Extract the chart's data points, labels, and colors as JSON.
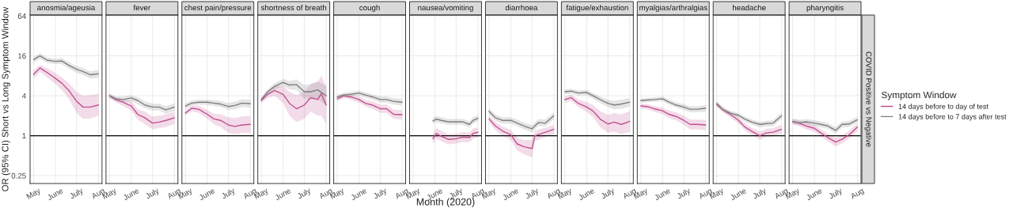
{
  "chart_data": [
    {
      "type": "line",
      "title": "anosmia/ageusia",
      "ylabel": "OR (95% CI) Short vs Long Symptom Window",
      "log": "y",
      "grid": true,
      "xlim": [
        "2020-04-26",
        "2020-08-06"
      ],
      "ylim": [
        0.19,
        66
      ],
      "yticks": [
        0.25,
        1,
        4,
        16,
        64
      ],
      "xticks": [
        {
          "value": "2020-05-01",
          "label": "May"
        },
        {
          "value": "2020-06-01",
          "label": "June"
        },
        {
          "value": "2020-07-01",
          "label": "July"
        },
        {
          "value": "2020-08-01",
          "label": "Aug"
        }
      ],
      "ref_lines": [
        {
          "axis": "y",
          "value": 1,
          "color": "#000000"
        }
      ],
      "x": [
        "2020-05-01",
        "2020-05-10",
        "2020-05-20",
        "2020-06-01",
        "2020-06-10",
        "2020-06-20",
        "2020-07-01",
        "2020-07-10",
        "2020-07-20",
        "2020-08-01"
      ],
      "series": [
        {
          "color": "#c2518f",
          "values": [
            8.4,
            10.5,
            9.0,
            7.3,
            6.2,
            4.8,
            3.3,
            2.7,
            2.7,
            2.9
          ],
          "lower": [
            7.2,
            9.2,
            7.6,
            6.0,
            4.9,
            3.6,
            2.2,
            1.8,
            1.8,
            2.0
          ],
          "upper": [
            9.6,
            11.8,
            10.4,
            8.8,
            7.6,
            6.2,
            4.6,
            4.0,
            4.1,
            4.3
          ]
        },
        {
          "color": "#7f7f7f",
          "values": [
            14,
            16,
            13.8,
            13.2,
            13.4,
            11.5,
            10,
            9.3,
            8.3,
            8.6
          ],
          "lower": [
            12.5,
            14.5,
            12.5,
            12,
            12,
            10.3,
            8.9,
            8.2,
            7.3,
            7.5
          ],
          "upper": [
            15.5,
            17.5,
            15.2,
            14.5,
            14.8,
            12.8,
            11.2,
            10.5,
            9.4,
            9.8
          ]
        }
      ]
    },
    {
      "type": "line",
      "title": "fever",
      "log": "y",
      "grid": true,
      "tick_labels": "x",
      "xlim": [
        "2020-04-26",
        "2020-08-06"
      ],
      "ylim": [
        0.19,
        66
      ],
      "yticks": [
        0.25,
        1,
        4,
        16,
        64
      ],
      "xticks": [
        {
          "value": "2020-05-01",
          "label": "May"
        },
        {
          "value": "2020-06-01",
          "label": "June"
        },
        {
          "value": "2020-07-01",
          "label": "July"
        },
        {
          "value": "2020-08-01",
          "label": "Aug"
        }
      ],
      "ref_lines": [
        {
          "axis": "y",
          "value": 1,
          "color": "#000000"
        }
      ],
      "x": [
        "2020-05-01",
        "2020-05-10",
        "2020-05-20",
        "2020-06-01",
        "2020-06-10",
        "2020-06-20",
        "2020-07-01",
        "2020-07-10",
        "2020-07-20",
        "2020-08-01"
      ],
      "series": [
        {
          "color": "#c2518f",
          "values": [
            4.0,
            3.5,
            3.2,
            2.8,
            2.1,
            1.86,
            1.55,
            1.6,
            1.7,
            1.86
          ],
          "lower": [
            3.7,
            3.2,
            2.8,
            2.4,
            1.75,
            1.5,
            1.25,
            1.3,
            1.35,
            1.5
          ],
          "upper": [
            4.3,
            3.8,
            3.6,
            3.3,
            2.5,
            2.3,
            1.95,
            2.0,
            2.1,
            2.3
          ]
        },
        {
          "color": "#7f7f7f",
          "values": [
            4.0,
            3.6,
            3.5,
            3.7,
            3.4,
            2.9,
            2.7,
            2.7,
            2.45,
            2.7
          ],
          "lower": [
            3.7,
            3.3,
            3.2,
            3.3,
            3.0,
            2.6,
            2.4,
            2.4,
            2.15,
            2.35
          ],
          "upper": [
            4.3,
            3.9,
            3.9,
            4.1,
            3.8,
            3.3,
            3.05,
            3.05,
            2.8,
            3.1
          ]
        }
      ]
    },
    {
      "type": "line",
      "title": "chest pain/pressure",
      "log": "y",
      "grid": true,
      "tick_labels": "x",
      "xlim": [
        "2020-04-26",
        "2020-08-06"
      ],
      "ylim": [
        0.19,
        66
      ],
      "yticks": [
        0.25,
        1,
        4,
        16,
        64
      ],
      "xticks": [
        {
          "value": "2020-05-01",
          "label": "May"
        },
        {
          "value": "2020-06-01",
          "label": "June"
        },
        {
          "value": "2020-07-01",
          "label": "July"
        },
        {
          "value": "2020-08-01",
          "label": "Aug"
        }
      ],
      "ref_lines": [
        {
          "axis": "y",
          "value": 1,
          "color": "#000000"
        }
      ],
      "x": [
        "2020-05-01",
        "2020-05-10",
        "2020-05-20",
        "2020-06-01",
        "2020-06-10",
        "2020-06-20",
        "2020-07-01",
        "2020-07-10",
        "2020-07-20",
        "2020-08-01"
      ],
      "series": [
        {
          "color": "#c2518f",
          "values": [
            2.2,
            2.6,
            2.5,
            2.1,
            1.8,
            1.7,
            1.45,
            1.38,
            1.45,
            1.48
          ],
          "lower": [
            2.0,
            2.35,
            2.2,
            1.8,
            1.5,
            1.35,
            1.1,
            1.05,
            1.1,
            1.1
          ],
          "upper": [
            2.45,
            2.85,
            2.85,
            2.45,
            2.15,
            2.1,
            1.9,
            1.85,
            1.95,
            2.0
          ]
        },
        {
          "color": "#7f7f7f",
          "values": [
            2.8,
            3.1,
            3.2,
            3.2,
            3.1,
            3.0,
            2.75,
            2.85,
            3.1,
            3.05
          ],
          "lower": [
            2.55,
            2.85,
            2.95,
            2.9,
            2.8,
            2.7,
            2.45,
            2.5,
            2.7,
            2.65
          ],
          "upper": [
            3.1,
            3.4,
            3.5,
            3.5,
            3.45,
            3.35,
            3.1,
            3.25,
            3.55,
            3.5
          ]
        }
      ]
    },
    {
      "type": "line",
      "title": "shortness of breath",
      "log": "y",
      "grid": true,
      "tick_labels": "x",
      "xlim": [
        "2020-04-26",
        "2020-08-06"
      ],
      "ylim": [
        0.19,
        66
      ],
      "yticks": [
        0.25,
        1,
        4,
        16,
        64
      ],
      "xticks": [
        {
          "value": "2020-05-01",
          "label": "May"
        },
        {
          "value": "2020-06-01",
          "label": "June"
        },
        {
          "value": "2020-07-01",
          "label": "July"
        },
        {
          "value": "2020-08-01",
          "label": "Aug"
        }
      ],
      "ref_lines": [
        {
          "axis": "y",
          "value": 1,
          "color": "#000000"
        }
      ],
      "x": [
        "2020-05-01",
        "2020-05-10",
        "2020-05-20",
        "2020-06-01",
        "2020-06-10",
        "2020-06-20",
        "2020-07-01",
        "2020-07-10",
        "2020-07-20",
        "2020-08-01"
      ],
      "series": [
        {
          "color": "#c2518f",
          "x": [
            "2020-05-01",
            "2020-05-10",
            "2020-05-20",
            "2020-06-01",
            "2020-06-10",
            "2020-06-20",
            "2020-07-01",
            "2020-07-10",
            "2020-07-20",
            "2020-07-25",
            "2020-08-01"
          ],
          "values": [
            3.4,
            4.2,
            4.8,
            4.2,
            3.07,
            2.55,
            2.9,
            3.75,
            3.5,
            4.3,
            2.9
          ],
          "lower": [
            3.1,
            3.7,
            4.0,
            3.1,
            2.0,
            1.6,
            1.8,
            2.3,
            2.0,
            2.0,
            1.5
          ],
          "upper": [
            3.7,
            4.7,
            5.6,
            5.6,
            4.6,
            4.1,
            4.6,
            6.0,
            6.5,
            8.0,
            5.5
          ]
        },
        {
          "color": "#7f7f7f",
          "values": [
            3.5,
            4.6,
            5.55,
            6.35,
            5.8,
            5.9,
            4.6,
            4.6,
            4.9,
            4.0
          ],
          "lower": [
            3.2,
            4.2,
            5.0,
            5.6,
            5.0,
            4.9,
            3.6,
            3.5,
            3.6,
            2.8
          ],
          "upper": [
            3.8,
            5.0,
            6.2,
            7.2,
            6.7,
            7.1,
            5.8,
            6.0,
            6.6,
            5.6
          ]
        }
      ]
    },
    {
      "type": "line",
      "title": "cough",
      "log": "y",
      "grid": true,
      "tick_labels": "x",
      "xlim": [
        "2020-04-26",
        "2020-08-06"
      ],
      "ylim": [
        0.19,
        66
      ],
      "yticks": [
        0.25,
        1,
        4,
        16,
        64
      ],
      "xticks": [
        {
          "value": "2020-05-01",
          "label": "May"
        },
        {
          "value": "2020-06-01",
          "label": "June"
        },
        {
          "value": "2020-07-01",
          "label": "July"
        },
        {
          "value": "2020-08-01",
          "label": "Aug"
        }
      ],
      "ref_lines": [
        {
          "axis": "y",
          "value": 1,
          "color": "#000000"
        }
      ],
      "x": [
        "2020-05-01",
        "2020-05-10",
        "2020-05-20",
        "2020-06-01",
        "2020-06-10",
        "2020-06-20",
        "2020-07-01",
        "2020-07-10",
        "2020-07-20",
        "2020-08-01"
      ],
      "series": [
        {
          "color": "#c2518f",
          "values": [
            3.6,
            4.0,
            3.85,
            3.5,
            3.07,
            2.9,
            2.55,
            2.55,
            2.1,
            2.07
          ],
          "lower": [
            3.3,
            3.7,
            3.5,
            3.15,
            2.75,
            2.55,
            2.2,
            2.2,
            1.8,
            1.75
          ],
          "upper": [
            3.9,
            4.3,
            4.2,
            3.9,
            3.45,
            3.3,
            2.95,
            2.95,
            2.45,
            2.45
          ]
        },
        {
          "color": "#7f7f7f",
          "values": [
            3.85,
            4.1,
            4.2,
            4.4,
            4.1,
            3.85,
            3.5,
            3.5,
            3.3,
            3.2
          ],
          "lower": [
            3.55,
            3.8,
            3.9,
            4.0,
            3.75,
            3.5,
            3.15,
            3.15,
            2.95,
            2.85
          ],
          "upper": [
            4.15,
            4.4,
            4.55,
            4.8,
            4.5,
            4.2,
            3.9,
            3.9,
            3.7,
            3.6
          ]
        }
      ]
    },
    {
      "type": "line",
      "title": "nausea/vomiting",
      "xlabel": "Month (2020)",
      "log": "y",
      "grid": true,
      "tick_labels": "x",
      "xlim": [
        "2020-04-26",
        "2020-08-06"
      ],
      "ylim": [
        0.19,
        66
      ],
      "yticks": [
        0.25,
        1,
        4,
        16,
        64
      ],
      "xticks": [
        {
          "value": "2020-05-01",
          "label": "May"
        },
        {
          "value": "2020-06-01",
          "label": "June"
        },
        {
          "value": "2020-07-01",
          "label": "July"
        },
        {
          "value": "2020-08-01",
          "label": "Aug"
        }
      ],
      "ref_lines": [
        {
          "axis": "y",
          "value": 1,
          "color": "#000000"
        }
      ],
      "x": [
        "2020-05-29",
        "2020-06-03",
        "2020-06-10",
        "2020-06-20",
        "2020-07-01",
        "2020-07-10",
        "2020-07-20",
        "2020-07-25",
        "2020-08-01"
      ],
      "series": [
        {
          "color": "#c2518f",
          "values": [
            0.9,
            1.08,
            0.98,
            0.88,
            0.9,
            0.95,
            0.94,
            1.08,
            1.13
          ],
          "lower": [
            0.75,
            0.9,
            0.82,
            0.74,
            0.76,
            0.8,
            0.8,
            0.9,
            0.95
          ],
          "upper": [
            1.08,
            1.3,
            1.18,
            1.05,
            1.07,
            1.13,
            1.12,
            1.28,
            1.34
          ]
        },
        {
          "color": "#7f7f7f",
          "values": [
            1.67,
            1.78,
            1.7,
            1.62,
            1.62,
            1.62,
            1.48,
            1.7,
            1.83
          ],
          "lower": [
            1.5,
            1.6,
            1.53,
            1.46,
            1.46,
            1.46,
            1.33,
            1.52,
            1.64
          ],
          "upper": [
            1.86,
            1.98,
            1.89,
            1.8,
            1.8,
            1.8,
            1.65,
            1.9,
            2.04
          ]
        }
      ]
    },
    {
      "type": "line",
      "title": "diarrhoea",
      "log": "y",
      "grid": true,
      "tick_labels": "x",
      "xlim": [
        "2020-04-26",
        "2020-08-06"
      ],
      "ylim": [
        0.19,
        66
      ],
      "yticks": [
        0.25,
        1,
        4,
        16,
        64
      ],
      "xticks": [
        {
          "value": "2020-05-01",
          "label": "May"
        },
        {
          "value": "2020-06-01",
          "label": "June"
        },
        {
          "value": "2020-07-01",
          "label": "July"
        },
        {
          "value": "2020-08-01",
          "label": "Aug"
        }
      ],
      "ref_lines": [
        {
          "axis": "y",
          "value": 1,
          "color": "#000000"
        }
      ],
      "x": [
        "2020-05-01",
        "2020-05-10",
        "2020-05-20",
        "2020-06-01",
        "2020-06-10",
        "2020-06-20",
        "2020-07-01",
        "2020-07-10",
        "2020-07-20",
        "2020-08-01"
      ],
      "series": [
        {
          "color": "#c2518f",
          "x": [
            "2020-05-01",
            "2020-05-10",
            "2020-05-20",
            "2020-06-01",
            "2020-06-10",
            "2020-06-20",
            "2020-07-01",
            "2020-07-05",
            "2020-07-20",
            "2020-08-01"
          ],
          "values": [
            1.8,
            1.4,
            1.18,
            1.03,
            0.75,
            0.68,
            0.64,
            1.0,
            1.13,
            1.25
          ],
          "lower": [
            1.6,
            1.22,
            1.0,
            0.86,
            0.6,
            0.52,
            0.47,
            0.82,
            0.96,
            1.06
          ],
          "upper": [
            2.0,
            1.6,
            1.38,
            1.22,
            0.93,
            0.86,
            0.86,
            1.2,
            1.32,
            1.46
          ]
        },
        {
          "color": "#7f7f7f",
          "values": [
            2.33,
            1.86,
            1.7,
            1.7,
            1.55,
            1.4,
            1.27,
            1.58,
            1.55,
            2.0
          ],
          "lower": [
            2.1,
            1.66,
            1.52,
            1.52,
            1.38,
            1.24,
            1.12,
            1.4,
            1.38,
            1.77
          ],
          "upper": [
            2.58,
            2.08,
            1.9,
            1.9,
            1.74,
            1.58,
            1.44,
            1.78,
            1.75,
            2.26
          ]
        }
      ]
    },
    {
      "type": "line",
      "title": "fatigue/exhaustion",
      "log": "y",
      "grid": true,
      "tick_labels": "x",
      "xlim": [
        "2020-04-26",
        "2020-08-06"
      ],
      "ylim": [
        0.19,
        66
      ],
      "yticks": [
        0.25,
        1,
        4,
        16,
        64
      ],
      "xticks": [
        {
          "value": "2020-05-01",
          "label": "May"
        },
        {
          "value": "2020-06-01",
          "label": "June"
        },
        {
          "value": "2020-07-01",
          "label": "July"
        },
        {
          "value": "2020-08-01",
          "label": "Aug"
        }
      ],
      "ref_lines": [
        {
          "axis": "y",
          "value": 1,
          "color": "#000000"
        }
      ],
      "x": [
        "2020-05-01",
        "2020-05-10",
        "2020-05-20",
        "2020-06-01",
        "2020-06-10",
        "2020-06-20",
        "2020-07-01",
        "2020-07-10",
        "2020-07-20",
        "2020-08-01"
      ],
      "series": [
        {
          "color": "#c2518f",
          "values": [
            3.5,
            3.75,
            3.07,
            2.7,
            2.35,
            1.78,
            1.5,
            1.6,
            1.48,
            1.65
          ],
          "lower": [
            3.1,
            3.35,
            2.7,
            2.3,
            1.9,
            1.35,
            1.1,
            1.15,
            1.05,
            1.15
          ],
          "upper": [
            3.9,
            4.2,
            3.5,
            3.2,
            2.9,
            2.35,
            2.05,
            2.2,
            2.1,
            2.35
          ]
        },
        {
          "color": "#7f7f7f",
          "values": [
            4.6,
            4.7,
            4.4,
            4.5,
            4.0,
            3.5,
            3.07,
            2.9,
            3.0,
            3.2
          ],
          "lower": [
            4.2,
            4.3,
            4.0,
            4.1,
            3.6,
            3.1,
            2.7,
            2.5,
            2.55,
            2.75
          ],
          "upper": [
            5.0,
            5.1,
            4.8,
            4.9,
            4.4,
            3.9,
            3.5,
            3.35,
            3.5,
            3.7
          ]
        }
      ]
    },
    {
      "type": "line",
      "title": "myalgias/arthralgias",
      "log": "y",
      "grid": true,
      "tick_labels": "x",
      "xlim": [
        "2020-04-26",
        "2020-08-06"
      ],
      "ylim": [
        0.19,
        66
      ],
      "yticks": [
        0.25,
        1,
        4,
        16,
        64
      ],
      "xticks": [
        {
          "value": "2020-05-01",
          "label": "May"
        },
        {
          "value": "2020-06-01",
          "label": "June"
        },
        {
          "value": "2020-07-01",
          "label": "July"
        },
        {
          "value": "2020-08-01",
          "label": "Aug"
        }
      ],
      "ref_lines": [
        {
          "axis": "y",
          "value": 1,
          "color": "#000000"
        }
      ],
      "x": [
        "2020-05-01",
        "2020-05-10",
        "2020-05-20",
        "2020-06-01",
        "2020-06-10",
        "2020-06-20",
        "2020-07-01",
        "2020-07-10",
        "2020-07-20",
        "2020-08-01"
      ],
      "series": [
        {
          "color": "#c2518f",
          "values": [
            2.8,
            2.75,
            2.55,
            2.37,
            2.1,
            1.95,
            1.7,
            1.48,
            1.48,
            1.45
          ],
          "lower": [
            2.55,
            2.5,
            2.3,
            2.1,
            1.85,
            1.7,
            1.45,
            1.25,
            1.25,
            1.2
          ],
          "upper": [
            3.05,
            3.0,
            2.8,
            2.65,
            2.4,
            2.25,
            2.0,
            1.75,
            1.75,
            1.75
          ]
        },
        {
          "color": "#7f7f7f",
          "values": [
            3.4,
            3.45,
            3.5,
            3.6,
            3.2,
            2.9,
            2.7,
            2.5,
            2.5,
            2.6
          ],
          "lower": [
            3.15,
            3.2,
            3.25,
            3.3,
            2.95,
            2.65,
            2.45,
            2.25,
            2.25,
            2.3
          ],
          "upper": [
            3.65,
            3.7,
            3.8,
            3.9,
            3.5,
            3.2,
            2.98,
            2.78,
            2.78,
            2.9
          ]
        }
      ]
    },
    {
      "type": "line",
      "title": "headache",
      "log": "y",
      "grid": true,
      "tick_labels": "x",
      "xlim": [
        "2020-04-26",
        "2020-08-06"
      ],
      "ylim": [
        0.19,
        66
      ],
      "yticks": [
        0.25,
        1,
        4,
        16,
        64
      ],
      "xticks": [
        {
          "value": "2020-05-01",
          "label": "May"
        },
        {
          "value": "2020-06-01",
          "label": "June"
        },
        {
          "value": "2020-07-01",
          "label": "July"
        },
        {
          "value": "2020-08-01",
          "label": "Aug"
        }
      ],
      "ref_lines": [
        {
          "axis": "y",
          "value": 1,
          "color": "#000000"
        }
      ],
      "x": [
        "2020-05-01",
        "2020-05-10",
        "2020-05-20",
        "2020-06-01",
        "2020-06-10",
        "2020-06-20",
        "2020-07-01",
        "2020-07-10",
        "2020-07-20",
        "2020-08-01"
      ],
      "series": [
        {
          "color": "#c2518f",
          "values": [
            2.95,
            2.45,
            2.1,
            1.7,
            1.35,
            1.16,
            1.0,
            1.1,
            1.13,
            1.25
          ],
          "lower": [
            2.7,
            2.25,
            1.9,
            1.52,
            1.2,
            1.02,
            0.87,
            0.96,
            0.98,
            1.08
          ],
          "upper": [
            3.2,
            2.7,
            2.3,
            1.9,
            1.52,
            1.32,
            1.15,
            1.26,
            1.3,
            1.45
          ]
        },
        {
          "color": "#7f7f7f",
          "values": [
            3.07,
            2.45,
            2.2,
            2.03,
            1.78,
            1.6,
            1.48,
            1.52,
            1.55,
            2.0
          ],
          "lower": [
            2.85,
            2.27,
            2.03,
            1.87,
            1.63,
            1.46,
            1.34,
            1.37,
            1.39,
            1.78
          ],
          "upper": [
            3.3,
            2.65,
            2.38,
            2.2,
            1.94,
            1.76,
            1.63,
            1.68,
            1.72,
            2.24
          ]
        }
      ]
    },
    {
      "type": "line",
      "title": "pharyngitis",
      "legend": "right",
      "legend_title": "Symptom Window",
      "annotations": [
        "COVID Positive vs Negative"
      ],
      "log": "y",
      "grid": true,
      "tick_labels": "x",
      "xlim": [
        "2020-04-26",
        "2020-08-06"
      ],
      "ylim": [
        0.19,
        66
      ],
      "yticks": [
        0.25,
        1,
        4,
        16,
        64
      ],
      "xticks": [
        {
          "value": "2020-05-01",
          "label": "May"
        },
        {
          "value": "2020-06-01",
          "label": "June"
        },
        {
          "value": "2020-07-01",
          "label": "July"
        },
        {
          "value": "2020-08-01",
          "label": "Aug"
        }
      ],
      "ref_lines": [
        {
          "axis": "y",
          "value": 1,
          "color": "#000000"
        }
      ],
      "x": [
        "2020-05-01",
        "2020-05-10",
        "2020-05-20",
        "2020-06-01",
        "2020-06-10",
        "2020-06-20",
        "2020-07-01",
        "2020-07-10",
        "2020-07-20",
        "2020-08-01"
      ],
      "series": [
        {
          "name": "14 days before to day of test",
          "color": "#c2518f",
          "values": [
            1.62,
            1.55,
            1.4,
            1.29,
            1.1,
            0.94,
            0.8,
            0.88,
            1.03,
            1.35
          ],
          "lower": [
            1.47,
            1.4,
            1.25,
            1.15,
            0.97,
            0.82,
            0.69,
            0.76,
            0.9,
            1.18
          ],
          "upper": [
            1.78,
            1.71,
            1.56,
            1.45,
            1.25,
            1.08,
            0.93,
            1.02,
            1.18,
            1.54
          ]
        },
        {
          "name": "14 days before to 7 days after test",
          "color": "#7f7f7f",
          "values": [
            1.65,
            1.57,
            1.62,
            1.55,
            1.48,
            1.4,
            1.2,
            1.48,
            1.5,
            1.74
          ],
          "lower": [
            1.5,
            1.43,
            1.47,
            1.4,
            1.34,
            1.27,
            1.08,
            1.33,
            1.35,
            1.57
          ],
          "upper": [
            1.82,
            1.73,
            1.78,
            1.71,
            1.64,
            1.55,
            1.34,
            1.64,
            1.67,
            1.93
          ]
        }
      ]
    }
  ]
}
